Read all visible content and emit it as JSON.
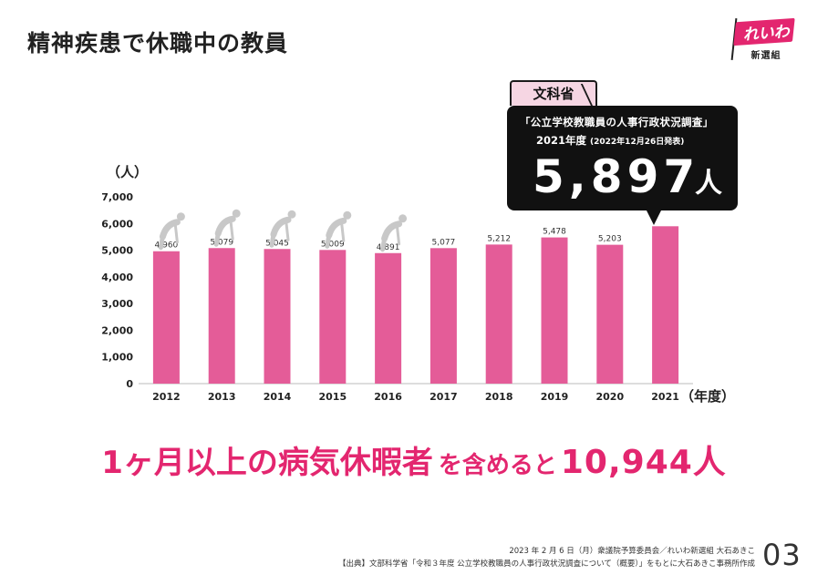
{
  "title": "精神疾患で休職中の教員",
  "logo": {
    "text": "れいわ",
    "sub": "新選組"
  },
  "callout": {
    "tab": "文科省",
    "line1": "「公立学校教職員の人事行政状況調査」",
    "line2": "2021年度",
    "line2_small": "(2022年12月26日発表)",
    "value": "5,897",
    "unit": "人"
  },
  "headline": {
    "part1": "1ヶ月以上の病気休暇者",
    "part2": "を含めると",
    "part3": "10,944人"
  },
  "footer": {
    "line1": "2023 年 2 月 6 日（月）衆議院予算委員会／れいわ新選組 大石あきこ",
    "line2": "【出典】文部科学省「令和３年度 公立学校教職員の人事行政状況調査について（概要）」をもとに大石あきこ事務所作成",
    "page": "03"
  },
  "chart_data": {
    "type": "bar",
    "categories": [
      "2012",
      "2013",
      "2014",
      "2015",
      "2016",
      "2017",
      "2018",
      "2019",
      "2020",
      "2021"
    ],
    "values": [
      4960,
      5079,
      5045,
      5009,
      4891,
      5077,
      5212,
      5478,
      5203,
      5897
    ],
    "data_labels": [
      "4,960",
      "5,079",
      "5,045",
      "5,009",
      "4,891",
      "5,077",
      "5,212",
      "5,478",
      "5,203",
      ""
    ],
    "yticks": [
      0,
      1000,
      2000,
      3000,
      4000,
      5000,
      6000,
      7000
    ],
    "ytick_labels": [
      "0",
      "1,000",
      "2,000",
      "3,000",
      "4,000",
      "5,000",
      "6,000",
      "7,000"
    ],
    "ylim": [
      0,
      7000
    ],
    "ylabel": "（人）",
    "xlabel": "（年度）",
    "bar_color": "#e45c98",
    "grid": false
  }
}
